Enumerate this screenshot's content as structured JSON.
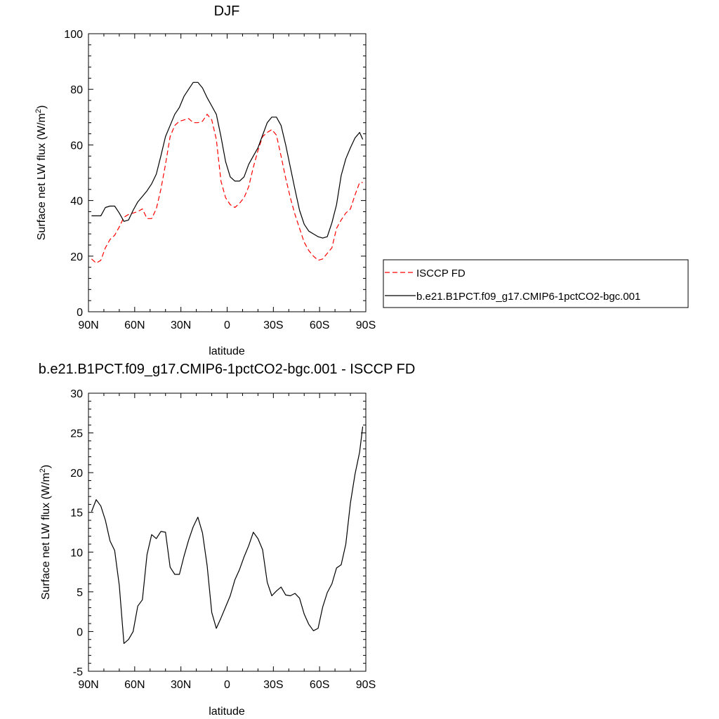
{
  "chart_data": [
    {
      "type": "line",
      "title": "DJF",
      "xlabel": "latitude",
      "ylabel": "Surface net LW flux (W/m²)",
      "ylabel_main": "Surface net LW flux (W/m",
      "ylabel_sup": "2",
      "ylabel_end": ")",
      "xlim": [
        90,
        -90
      ],
      "ylim": [
        0,
        100
      ],
      "x_tick_values": [
        90,
        60,
        30,
        0,
        -30,
        -60,
        -90
      ],
      "x_tick_labels": [
        "90N",
        "60N",
        "30N",
        "0",
        "30S",
        "60S",
        "90S"
      ],
      "y_tick_values": [
        0,
        20,
        40,
        60,
        80,
        100
      ],
      "y_tick_labels": [
        "0",
        "20",
        "40",
        "60",
        "80",
        "100"
      ],
      "legend_position": "right",
      "series": [
        {
          "name": "ISCCP FD",
          "color": "#ff0000",
          "dash": "dashed",
          "x": [
            88,
            85,
            82,
            79,
            76,
            73,
            70,
            67,
            64,
            61,
            58,
            55,
            52,
            49,
            46,
            43,
            40,
            37,
            34,
            31,
            28,
            25,
            22,
            19,
            16,
            13,
            10,
            7,
            4,
            1,
            -2,
            -5,
            -8,
            -11,
            -14,
            -17,
            -20,
            -23,
            -26,
            -29,
            -32,
            -35,
            -38,
            -41,
            -44,
            -47,
            -50,
            -53,
            -56,
            -59,
            -62,
            -65,
            -68,
            -71,
            -74,
            -77,
            -80,
            -83,
            -86,
            -88
          ],
          "y": [
            19,
            17.5,
            18.5,
            23,
            26,
            27.5,
            30.5,
            34,
            35,
            35.5,
            36,
            37,
            33.5,
            33.5,
            37,
            44,
            53,
            63,
            67,
            68.5,
            69,
            69.5,
            68,
            68,
            68.5,
            71,
            69,
            62,
            47,
            41,
            38.5,
            37.5,
            39,
            41,
            45,
            52,
            58,
            63,
            64.5,
            65.5,
            63.5,
            56,
            48,
            41,
            35,
            30,
            25,
            22,
            20,
            18.5,
            19,
            21,
            23,
            30,
            33,
            35.5,
            37,
            42,
            46.5,
            46.5
          ]
        },
        {
          "name": "b.e21.B1PCT.f09_g17.CMIP6-1pctCO2-bgc.001",
          "color": "#000000",
          "dash": "solid",
          "x": [
            88,
            85,
            82,
            79,
            76,
            73,
            70,
            67,
            64,
            61,
            58,
            55,
            52,
            49,
            46,
            43,
            40,
            37,
            34,
            31,
            28,
            25,
            22,
            19,
            16,
            13,
            10,
            7,
            4,
            1,
            -2,
            -5,
            -8,
            -11,
            -14,
            -17,
            -20,
            -23,
            -26,
            -29,
            -32,
            -35,
            -38,
            -41,
            -44,
            -47,
            -50,
            -53,
            -56,
            -59,
            -62,
            -65,
            -68,
            -71,
            -74,
            -77,
            -80,
            -83,
            -86,
            -88
          ],
          "y": [
            34.5,
            34.5,
            34.5,
            37.5,
            38,
            38,
            35.5,
            32.5,
            33,
            36.5,
            39.5,
            41.5,
            43.5,
            46,
            49.5,
            56,
            63,
            67,
            71,
            73.5,
            77.5,
            80,
            82.5,
            82.5,
            80.5,
            77,
            74,
            71,
            63,
            54,
            48.5,
            47,
            47,
            48.5,
            53,
            56,
            59,
            63.5,
            68,
            70,
            70,
            67,
            60,
            52,
            44,
            36.5,
            31.5,
            29,
            28,
            27,
            26.5,
            27,
            32,
            38.5,
            49,
            55,
            59,
            62.5,
            64.5,
            62
          ]
        }
      ]
    },
    {
      "type": "line",
      "title": "b.e21.B1PCT.f09_g17.CMIP6-1pctCO2-bgc.001 - ISCCP FD",
      "xlabel": "latitude",
      "ylabel": "Surface net LW flux (W/m²)",
      "ylabel_main": "Surface net LW flux (W/m",
      "ylabel_sup": "2",
      "ylabel_end": ")",
      "xlim": [
        90,
        -90
      ],
      "ylim": [
        -5,
        30
      ],
      "x_tick_values": [
        90,
        60,
        30,
        0,
        -30,
        -60,
        -90
      ],
      "x_tick_labels": [
        "90N",
        "60N",
        "30N",
        "0",
        "30S",
        "60S",
        "90S"
      ],
      "y_tick_values": [
        -5,
        0,
        5,
        10,
        15,
        20,
        25,
        30
      ],
      "y_tick_labels": [
        "-5",
        "0",
        "5",
        "10",
        "15",
        "20",
        "25",
        "30"
      ],
      "series": [
        {
          "color": "#000000",
          "dash": "solid",
          "x": [
            88,
            85,
            82,
            79,
            76,
            73,
            70,
            67,
            64,
            61,
            58,
            55,
            52,
            49,
            46,
            43,
            40,
            37,
            34,
            31,
            28,
            25,
            22,
            19,
            16,
            13,
            10,
            7,
            4,
            1,
            -2,
            -5,
            -8,
            -11,
            -14,
            -17,
            -20,
            -23,
            -26,
            -29,
            -32,
            -35,
            -38,
            -41,
            -44,
            -47,
            -50,
            -53,
            -56,
            -59,
            -62,
            -65,
            -68,
            -71,
            -74,
            -77,
            -80,
            -83,
            -86,
            -88
          ],
          "y": [
            15.1,
            16.6,
            15.8,
            14,
            11.4,
            10.2,
            5.8,
            -1.5,
            -1,
            0,
            3.2,
            4,
            9.7,
            12.2,
            11.7,
            12.6,
            12.5,
            8.1,
            7.2,
            7.2,
            9.5,
            11.5,
            13.2,
            14.4,
            12.4,
            8.3,
            2.4,
            0.4,
            1.7,
            3.1,
            4.5,
            6.5,
            7.8,
            9.4,
            10.8,
            12.5,
            11.7,
            10.3,
            6.2,
            4.5,
            5.1,
            5.6,
            4.6,
            4.5,
            4.8,
            4.2,
            2.2,
            0.9,
            0.1,
            0.4,
            3.1,
            4.9,
            6,
            8,
            8.4,
            11,
            16.2,
            19.8,
            22.6,
            25.8
          ]
        }
      ]
    }
  ]
}
